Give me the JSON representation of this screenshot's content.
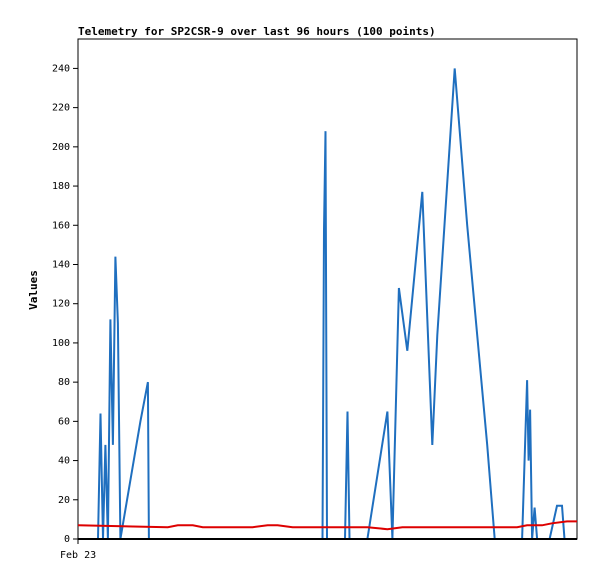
{
  "chart_data": {
    "type": "line",
    "title": "Telemetry for SP2CSR-9 over last 96 hours (100 points)",
    "ylabel": "Values",
    "xlabel": "",
    "x_tick_labels": [
      "Feb 23"
    ],
    "ylim": [
      0,
      255
    ],
    "y_ticks": [
      0,
      20,
      40,
      60,
      80,
      100,
      120,
      140,
      160,
      180,
      200,
      220,
      240
    ],
    "xlim": [
      0,
      100
    ],
    "grid": false,
    "legend": "none",
    "series": [
      {
        "color": "#1f6fbf",
        "points": [
          [
            4,
            0
          ],
          [
            4.5,
            64
          ],
          [
            5,
            0
          ],
          [
            5.5,
            48
          ],
          [
            6,
            0
          ],
          [
            6.5,
            112
          ],
          [
            7,
            48
          ],
          [
            7.5,
            144
          ],
          [
            8,
            110
          ],
          [
            8.5,
            0
          ],
          [
            12.5,
            60
          ],
          [
            14,
            80
          ],
          [
            14.2,
            0
          ],
          [
            49,
            0
          ],
          [
            49.3,
            158
          ],
          [
            49.6,
            208
          ],
          [
            49.9,
            0
          ],
          [
            53.5,
            0
          ],
          [
            54,
            65
          ],
          [
            54.4,
            0
          ],
          [
            58,
            0
          ],
          [
            62,
            65
          ],
          [
            63,
            0
          ],
          [
            64.3,
            128
          ],
          [
            66,
            96
          ],
          [
            69,
            177
          ],
          [
            71,
            48
          ],
          [
            72,
            104
          ],
          [
            75.5,
            240
          ],
          [
            78,
            160
          ],
          [
            82,
            48
          ],
          [
            83.5,
            0
          ],
          [
            89,
            0
          ],
          [
            90,
            81
          ],
          [
            90.3,
            40
          ],
          [
            90.6,
            66
          ],
          [
            91,
            0
          ],
          [
            91.5,
            16
          ],
          [
            92,
            0
          ],
          [
            94.5,
            0
          ],
          [
            96,
            17
          ],
          [
            97,
            17
          ],
          [
            97.5,
            0
          ]
        ]
      },
      {
        "color": "#dd0000",
        "points": [
          [
            0,
            7
          ],
          [
            18,
            6
          ],
          [
            20,
            7
          ],
          [
            23,
            7
          ],
          [
            25,
            6
          ],
          [
            35,
            6
          ],
          [
            38,
            7
          ],
          [
            40,
            7
          ],
          [
            43,
            6
          ],
          [
            58,
            6
          ],
          [
            62,
            5
          ],
          [
            65,
            6
          ],
          [
            88,
            6
          ],
          [
            90,
            7
          ],
          [
            93,
            7
          ],
          [
            95,
            8
          ],
          [
            98,
            9
          ],
          [
            100,
            9
          ]
        ]
      },
      {
        "color": "#000000",
        "points": [
          [
            0,
            0
          ],
          [
            100,
            0
          ]
        ]
      }
    ]
  }
}
